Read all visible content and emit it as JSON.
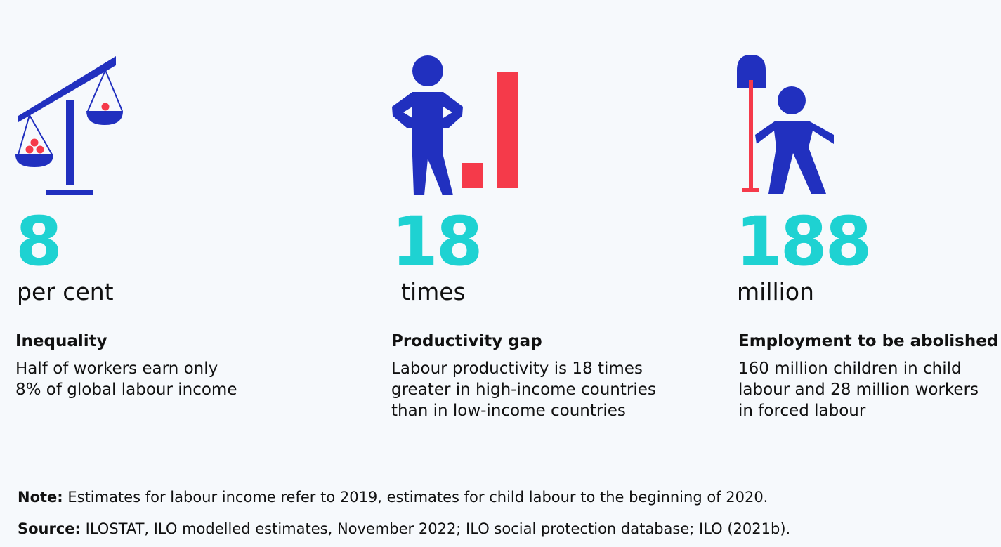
{
  "colors": {
    "background": "#f6f9fc",
    "icon_blue": "#2130bf",
    "icon_red": "#f53a4a",
    "number_teal": "#1ed2d2",
    "text": "#111111"
  },
  "stats": [
    {
      "icon": "balance-scale-icon",
      "number": "8",
      "unit": "per cent",
      "heading": "Inequality",
      "description_lines": [
        "Half of workers earn only",
        "8% of global labour income"
      ]
    },
    {
      "icon": "worker-with-bar-chart-icon",
      "number": "18",
      "unit": "times",
      "heading": "Productivity gap",
      "description_lines": [
        "Labour productivity is 18 times",
        "greater in high-income countries",
        "than in low-income countries"
      ]
    },
    {
      "icon": "child-with-shovel-icon",
      "number": "188",
      "unit": "million",
      "heading": "Employment to be abolished",
      "description_lines": [
        "160 million children in child",
        "labour and 28 million workers",
        "in forced labour"
      ]
    }
  ],
  "note": {
    "label": "Note:",
    "text": " Estimates for labour income refer to 2019, estimates for child labour to the beginning of 2020."
  },
  "source": {
    "label": "Source:",
    "text": " ILOSTAT, ILO modelled estimates, November 2022; ILO social protection database; ILO (2021b)."
  }
}
